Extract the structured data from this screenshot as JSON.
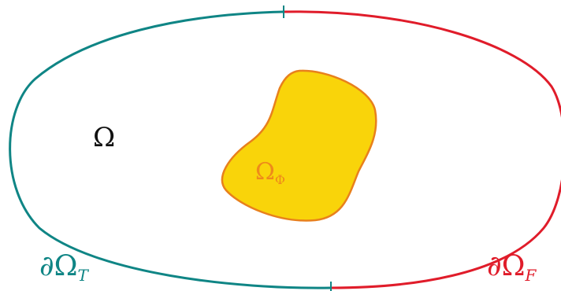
{
  "labels": {
    "domain": {
      "symbol": "Ω"
    },
    "inclusion": {
      "symbol": "Ω",
      "subscript": "Φ"
    },
    "boundary_t": {
      "symbol": "∂Ω",
      "subscript": "T"
    },
    "boundary_f": {
      "symbol": "∂Ω",
      "subscript": "F"
    }
  },
  "colors": {
    "boundary_t": "#0f8585",
    "boundary_f": "#e01c2a",
    "inclusion_fill": "#f9d40a",
    "inclusion_stroke": "#e8801c",
    "inclusion_label": "#ee8a1a",
    "domain_label": "#111111",
    "background": "#ffffff"
  }
}
